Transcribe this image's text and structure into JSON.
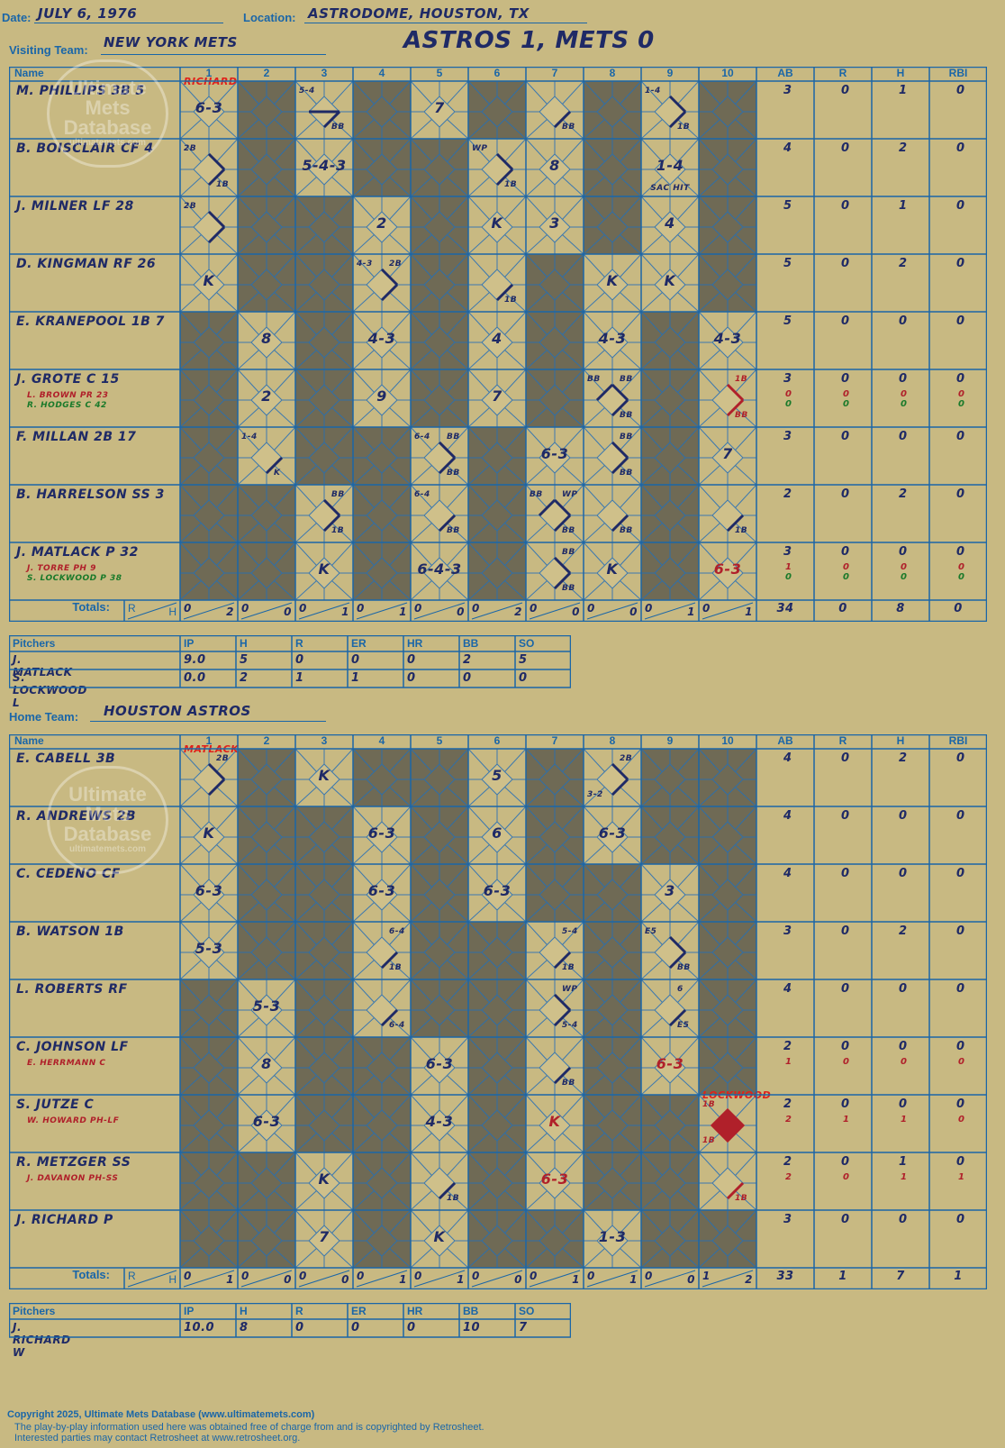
{
  "header": {
    "date_label": "Date:",
    "date": "JULY 6, 1976",
    "location_label": "Location:",
    "location": "ASTRODOME, HOUSTON, TX",
    "visiting_label": "Visiting Team:",
    "visiting_team": "NEW YORK METS",
    "headline": "ASTROS 1, METS 0",
    "home_label": "Home Team:",
    "home_team": "HOUSTON ASTROS"
  },
  "columns": {
    "name": "Name",
    "innings": [
      "1",
      "2",
      "3",
      "4",
      "5",
      "6",
      "7",
      "8",
      "9",
      "10"
    ],
    "stats": [
      "AB",
      "R",
      "H",
      "RBI"
    ]
  },
  "watermark": {
    "line1": "Ultimate",
    "line2": "Mets",
    "line3": "Database",
    "line4": "ultimatemets.com"
  },
  "visiting": {
    "pitcher_note": {
      "inning": 0,
      "text": "RICHARD"
    },
    "batters": [
      {
        "name": "M. PHILLIPS 3B 5",
        "subs": [],
        "cells": [
          {
            "play": "6-3"
          },
          {
            "dark": true
          },
          {
            "tl": "5-4",
            "br": "BB",
            "path": "13"
          },
          {
            "dark": true
          },
          {
            "play": "7"
          },
          {
            "dark": true
          },
          {
            "br": "BB",
            "path": "1"
          },
          {
            "dark": true
          },
          {
            "tl": "1-4",
            "br": "1B",
            "path": "12"
          },
          {
            "dark": true
          }
        ],
        "stats": [
          "3",
          "0",
          "1",
          "0"
        ],
        "substats": []
      },
      {
        "name": "B. BOISCLAIR CF 4",
        "subs": [],
        "cells": [
          {
            "tl": "2B",
            "br": "1B",
            "path": "12"
          },
          {
            "dark": true
          },
          {
            "play": "5-4-3"
          },
          {
            "dark": true
          },
          {
            "dark": true
          },
          {
            "tl": "WP",
            "br": "1B",
            "path": "12"
          },
          {
            "play": "8"
          },
          {
            "dark": true
          },
          {
            "play": "1-4",
            "bottom": "SAC HIT"
          },
          {
            "dark": true
          }
        ],
        "stats": [
          "4",
          "0",
          "2",
          "0"
        ],
        "substats": []
      },
      {
        "name": "J. MILNER LF 28",
        "subs": [],
        "cells": [
          {
            "tl": "2B",
            "path": "12"
          },
          {
            "dark": true
          },
          {
            "dark": true
          },
          {
            "play": "2"
          },
          {
            "dark": true
          },
          {
            "play": "K"
          },
          {
            "play": "3"
          },
          {
            "dark": true
          },
          {
            "play": "4"
          },
          {
            "dark": true
          }
        ],
        "stats": [
          "5",
          "0",
          "1",
          "0"
        ],
        "substats": []
      },
      {
        "name": "D. KINGMAN RF 26",
        "subs": [],
        "cells": [
          {
            "play": "K"
          },
          {
            "dark": true
          },
          {
            "dark": true
          },
          {
            "tl": "4-3",
            "tr": "2B",
            "path": "12"
          },
          {
            "dark": true
          },
          {
            "br": "1B",
            "path": "1"
          },
          {
            "dark": true
          },
          {
            "play": "K"
          },
          {
            "play": "K"
          },
          {
            "dark": true
          }
        ],
        "stats": [
          "5",
          "0",
          "2",
          "0"
        ],
        "substats": []
      },
      {
        "name": "E. KRANEPOOL 1B 7",
        "subs": [],
        "cells": [
          {
            "dark": true
          },
          {
            "play": "8"
          },
          {
            "dark": true
          },
          {
            "play": "4-3"
          },
          {
            "dark": true
          },
          {
            "play": "4"
          },
          {
            "dark": true
          },
          {
            "play": "4-3"
          },
          {
            "dark": true
          },
          {
            "play": "4-3"
          }
        ],
        "stats": [
          "5",
          "0",
          "0",
          "0"
        ],
        "substats": []
      },
      {
        "name": "J. GROTE C 15",
        "subs": [
          {
            "text": "L. BROWN PR 23",
            "color": "red"
          },
          {
            "text": "R. HODGES C 42",
            "color": "green"
          }
        ],
        "cells": [
          {
            "dark": true
          },
          {
            "play": "2"
          },
          {
            "dark": true
          },
          {
            "play": "9"
          },
          {
            "dark": true
          },
          {
            "play": "7"
          },
          {
            "dark": true
          },
          {
            "tl": "BB",
            "tr": "BB",
            "br": "BB",
            "path": "123"
          },
          {
            "dark": true
          },
          {
            "tr": "1B",
            "br": "BB",
            "path": "12",
            "red": true
          }
        ],
        "stats": [
          "3",
          "0",
          "0",
          "0"
        ],
        "substats": [
          [
            "0",
            "0",
            "0",
            "0"
          ],
          [
            "0",
            "0",
            "0",
            "0"
          ]
        ]
      },
      {
        "name": "F. MILLAN 2B 17",
        "subs": [],
        "cells": [
          {
            "dark": true
          },
          {
            "tl": "1-4",
            "br": "K",
            "path": "1"
          },
          {
            "dark": true
          },
          {
            "dark": true
          },
          {
            "tl": "6-4",
            "tr": "BB",
            "br": "BB",
            "path": "12"
          },
          {
            "dark": true
          },
          {
            "play": "6-3"
          },
          {
            "tr": "BB",
            "br": "BB",
            "path": "12"
          },
          {
            "dark": true
          },
          {
            "play": "7"
          }
        ],
        "stats": [
          "3",
          "0",
          "0",
          "0"
        ],
        "substats": []
      },
      {
        "name": "B. HARRELSON SS 3",
        "subs": [],
        "cells": [
          {
            "dark": true
          },
          {
            "dark": true
          },
          {
            "tr": "BB",
            "br": "1B",
            "path": "12"
          },
          {
            "dark": true
          },
          {
            "tl": "6-4",
            "br": "BB",
            "path": "1"
          },
          {
            "dark": true
          },
          {
            "tl": "BB",
            "tr": "WP",
            "br": "BB",
            "path": "123"
          },
          {
            "br": "BB",
            "path": "1"
          },
          {
            "dark": true
          },
          {
            "br": "1B",
            "path": "1"
          }
        ],
        "stats": [
          "2",
          "0",
          "2",
          "0"
        ],
        "substats": []
      },
      {
        "name": "J. MATLACK P 32",
        "subs": [
          {
            "text": "J. TORRE PH 9",
            "color": "red"
          },
          {
            "text": "S. LOCKWOOD P 38",
            "color": "green"
          }
        ],
        "cells": [
          {
            "dark": true
          },
          {
            "dark": true
          },
          {
            "play": "K"
          },
          {
            "dark": true
          },
          {
            "play": "6-4-3"
          },
          {
            "dark": true
          },
          {
            "tr": "BB",
            "br": "BB",
            "path": "12"
          },
          {
            "play": "K"
          },
          {
            "dark": true
          },
          {
            "play": "6-3",
            "red": true
          }
        ],
        "stats": [
          "3",
          "0",
          "0",
          "0"
        ],
        "substats": [
          [
            "1",
            "0",
            "0",
            "0"
          ],
          [
            "0",
            "0",
            "0",
            "0"
          ]
        ]
      }
    ],
    "totals_label": "Totals:",
    "totals_rh": [
      [
        "0",
        "2"
      ],
      [
        "0",
        "0"
      ],
      [
        "0",
        "1"
      ],
      [
        "0",
        "1"
      ],
      [
        "0",
        "0"
      ],
      [
        "0",
        "2"
      ],
      [
        "0",
        "0"
      ],
      [
        "0",
        "0"
      ],
      [
        "0",
        "1"
      ],
      [
        "0",
        "1"
      ]
    ],
    "totals_stats": [
      "34",
      "0",
      "8",
      "0"
    ],
    "pitchers": {
      "header": [
        "Pitchers",
        "IP",
        "H",
        "R",
        "ER",
        "HR",
        "BB",
        "SO"
      ],
      "rows": [
        [
          "J. MATLACK",
          "9.0",
          "5",
          "0",
          "0",
          "0",
          "2",
          "5"
        ],
        [
          "S. LOCKWOOD  L",
          "0.0",
          "2",
          "1",
          "1",
          "0",
          "0",
          "0"
        ]
      ]
    }
  },
  "home": {
    "pitcher_note": {
      "inning": 0,
      "text": "MATLACK"
    },
    "batters": [
      {
        "name": "E. CABELL 3B",
        "subs": [],
        "cells": [
          {
            "tr": "2B",
            "path": "12"
          },
          {
            "dark": true
          },
          {
            "play": "K"
          },
          {
            "dark": true
          },
          {
            "dark": true
          },
          {
            "play": "5"
          },
          {
            "dark": true
          },
          {
            "tr": "2B",
            "bl": "3-2",
            "path": "12"
          },
          {
            "dark": true
          },
          {
            "dark": true
          }
        ],
        "stats": [
          "4",
          "0",
          "2",
          "0"
        ],
        "substats": []
      },
      {
        "name": "R. ANDREWS 2B",
        "subs": [],
        "cells": [
          {
            "play": "K"
          },
          {
            "dark": true
          },
          {
            "dark": true
          },
          {
            "play": "6-3"
          },
          {
            "dark": true
          },
          {
            "play": "6"
          },
          {
            "dark": true
          },
          {
            "play": "6-3"
          },
          {
            "dark": true
          },
          {
            "dark": true
          }
        ],
        "stats": [
          "4",
          "0",
          "0",
          "0"
        ],
        "substats": []
      },
      {
        "name": "C. CEDENO CF",
        "subs": [],
        "cells": [
          {
            "play": "6-3"
          },
          {
            "dark": true
          },
          {
            "dark": true
          },
          {
            "play": "6-3"
          },
          {
            "dark": true
          },
          {
            "play": "6-3"
          },
          {
            "dark": true
          },
          {
            "dark": true
          },
          {
            "play": "3"
          },
          {
            "dark": true
          }
        ],
        "stats": [
          "4",
          "0",
          "0",
          "0"
        ],
        "substats": []
      },
      {
        "name": "B. WATSON 1B",
        "subs": [],
        "cells": [
          {
            "play": "5-3"
          },
          {
            "dark": true
          },
          {
            "dark": true
          },
          {
            "tr": "6-4",
            "br": "1B",
            "path": "1"
          },
          {
            "dark": true
          },
          {
            "dark": true
          },
          {
            "tr": "5-4",
            "br": "1B",
            "path": "1"
          },
          {
            "dark": true
          },
          {
            "tl": "E5",
            "br": "BB",
            "path": "12"
          },
          {
            "dark": true
          }
        ],
        "stats": [
          "3",
          "0",
          "2",
          "0"
        ],
        "substats": []
      },
      {
        "name": "L. ROBERTS RF",
        "subs": [],
        "cells": [
          {
            "dark": true
          },
          {
            "play": "5-3"
          },
          {
            "dark": true
          },
          {
            "br": "6-4",
            "path": "1"
          },
          {
            "dark": true
          },
          {
            "dark": true
          },
          {
            "tr": "WP",
            "br": "5-4",
            "path": "12"
          },
          {
            "dark": true
          },
          {
            "tr": "6",
            "br": "E5",
            "path": "1"
          },
          {
            "dark": true
          }
        ],
        "stats": [
          "4",
          "0",
          "0",
          "0"
        ],
        "substats": []
      },
      {
        "name": "C. JOHNSON LF",
        "subs": [
          {
            "text": "E. HERRMANN C",
            "color": "red"
          }
        ],
        "cells": [
          {
            "dark": true
          },
          {
            "play": "8"
          },
          {
            "dark": true
          },
          {
            "dark": true
          },
          {
            "play": "6-3"
          },
          {
            "dark": true
          },
          {
            "br": "BB",
            "path": "1"
          },
          {
            "dark": true
          },
          {
            "play": "6-3",
            "red": true
          },
          {
            "dark": true
          }
        ],
        "stats": [
          "2",
          "0",
          "0",
          "0"
        ],
        "substats": [
          [
            "1",
            "0",
            "0",
            "0"
          ]
        ]
      },
      {
        "name": "S. JUTZE C",
        "subs": [
          {
            "text": "W. HOWARD PH-LF",
            "color": "red"
          }
        ],
        "cells": [
          {
            "dark": true
          },
          {
            "play": "6-3"
          },
          {
            "dark": true
          },
          {
            "dark": true
          },
          {
            "play": "4-3"
          },
          {
            "dark": true
          },
          {
            "play": "K",
            "red": true
          },
          {
            "dark": true
          },
          {
            "dark": true
          },
          {
            "tl": "1B",
            "bl": "1B",
            "run": true,
            "note": "LOCKWOOD"
          }
        ],
        "stats": [
          "2",
          "0",
          "0",
          "0"
        ],
        "substats": [
          [
            "2",
            "1",
            "1",
            "0"
          ]
        ]
      },
      {
        "name": "R. METZGER SS",
        "subs": [
          {
            "text": "J. DAVANON PH-SS",
            "color": "red"
          }
        ],
        "cells": [
          {
            "dark": true
          },
          {
            "dark": true
          },
          {
            "play": "K"
          },
          {
            "dark": true
          },
          {
            "br": "1B",
            "path": "1"
          },
          {
            "dark": true
          },
          {
            "play": "6-3",
            "red": true
          },
          {
            "dark": true
          },
          {
            "dark": true
          },
          {
            "br": "1B",
            "path": "1",
            "red": true
          }
        ],
        "stats": [
          "2",
          "0",
          "1",
          "0"
        ],
        "substats": [
          [
            "2",
            "0",
            "1",
            "1"
          ]
        ]
      },
      {
        "name": "J. RICHARD P",
        "subs": [],
        "cells": [
          {
            "dark": true
          },
          {
            "dark": true
          },
          {
            "play": "7"
          },
          {
            "dark": true
          },
          {
            "play": "K"
          },
          {
            "dark": true
          },
          {
            "dark": true
          },
          {
            "play": "1-3"
          },
          {
            "dark": true
          },
          {
            "dark": true
          }
        ],
        "stats": [
          "3",
          "0",
          "0",
          "0"
        ],
        "substats": []
      }
    ],
    "totals_label": "Totals:",
    "totals_rh": [
      [
        "0",
        "1"
      ],
      [
        "0",
        "0"
      ],
      [
        "0",
        "0"
      ],
      [
        "0",
        "1"
      ],
      [
        "0",
        "1"
      ],
      [
        "0",
        "0"
      ],
      [
        "0",
        "1"
      ],
      [
        "0",
        "1"
      ],
      [
        "0",
        "0"
      ],
      [
        "1",
        "2"
      ]
    ],
    "totals_stats": [
      "33",
      "1",
      "7",
      "1"
    ],
    "pitchers": {
      "header": [
        "Pitchers",
        "IP",
        "H",
        "R",
        "ER",
        "HR",
        "BB",
        "SO"
      ],
      "rows": [
        [
          "J. RICHARD  W",
          "10.0",
          "8",
          "0",
          "0",
          "0",
          "10",
          "7"
        ]
      ]
    }
  },
  "footer": {
    "line1": "Copyright 2025, Ultimate Mets Database (www.ultimatemets.com)",
    "line2": "The play-by-play information used here was obtained free of charge from and is copyrighted by Retrosheet.",
    "line3": "Interested parties may contact Retrosheet at www.retrosheet.org."
  },
  "colors": {
    "background": "#c8b982",
    "grid": "#1a66a8",
    "dark_cell": "#6f6a55",
    "ink": "#1f2a66",
    "red_ink": "#b0202a",
    "green_ink": "#1a7a2a"
  }
}
